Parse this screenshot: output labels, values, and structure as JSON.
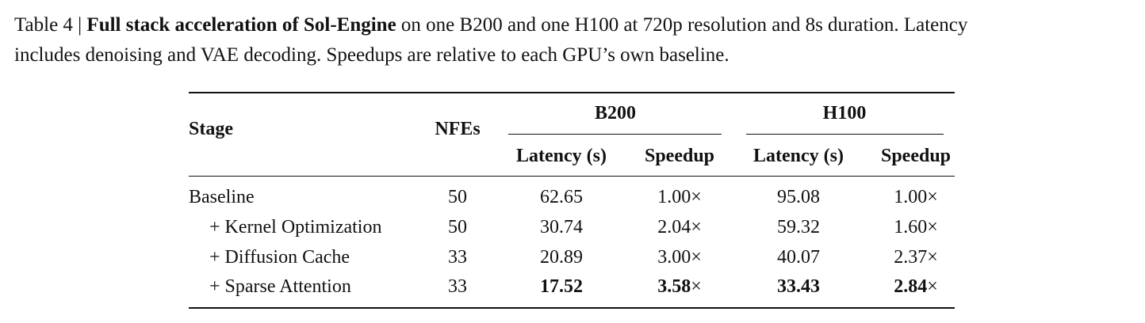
{
  "caption": {
    "prefix": "Table 4 | ",
    "bold": "Full stack acceleration of Sol-Engine",
    "line1_rest": " on one B200 and one H100 at 720p resolution and 8s duration. Latency",
    "line2": "includes denoising and VAE decoding. Speedups are relative to each GPU’s own baseline."
  },
  "table": {
    "headers": {
      "stage": "Stage",
      "nfes": "NFEs",
      "group1": "B200",
      "group2": "H100",
      "latency": "Latency (s)",
      "speedup": "Speedup"
    },
    "rows": [
      {
        "stage": "Baseline",
        "nfes": "50",
        "b200_latency": "62.65",
        "b200_speedup": "1.00",
        "h100_latency": "95.08",
        "h100_speedup": "1.00",
        "bold": false
      },
      {
        "stage": "+ Kernel Optimization",
        "nfes": "50",
        "b200_latency": "30.74",
        "b200_speedup": "2.04",
        "h100_latency": "59.32",
        "h100_speedup": "1.60",
        "bold": false
      },
      {
        "stage": "+ Diffusion Cache",
        "nfes": "33",
        "b200_latency": "20.89",
        "b200_speedup": "3.00",
        "h100_latency": "40.07",
        "h100_speedup": "2.37",
        "bold": false
      },
      {
        "stage": "+ Sparse Attention",
        "nfes": "33",
        "b200_latency": "17.52",
        "b200_speedup": "3.58",
        "h100_latency": "33.43",
        "h100_speedup": "2.84",
        "bold": true
      }
    ],
    "times_symbol": "×"
  }
}
